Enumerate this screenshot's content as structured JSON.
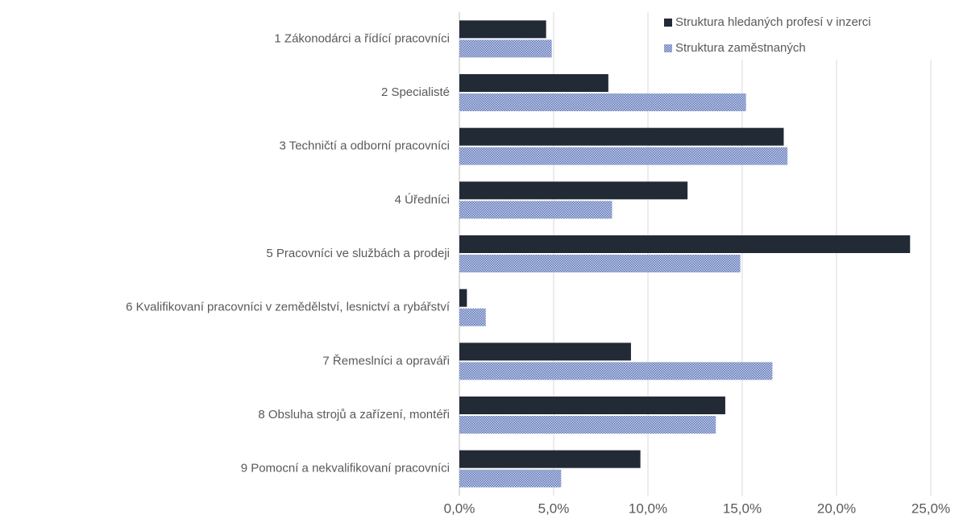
{
  "chart_data": {
    "type": "barh",
    "categories": [
      "1 Zákonodárci a řídící pracovníci",
      "2 Specialisté",
      "3 Techničtí a odborní pracovníci",
      "4 Úředníci",
      "5 Pracovníci ve službách a prodeji",
      "6 Kvalifikovaní pracovníci v zemědělství, lesnictví a rybářství",
      "7 Řemeslníci a opraváři",
      "8 Obsluha strojů a zařízení, montéři",
      "9 Pomocní a nekvalifikovaní pracovníci"
    ],
    "series": [
      {
        "name": "Struktura hledaných profesí v inzerci",
        "color": "#222a35",
        "values": [
          4.6,
          7.9,
          17.2,
          12.1,
          23.9,
          0.4,
          9.1,
          14.1,
          9.6
        ]
      },
      {
        "name": "Struktura zaměstnaných",
        "color": "#8497c8",
        "pattern": "hatched",
        "values": [
          4.9,
          15.2,
          17.4,
          8.1,
          14.9,
          1.4,
          16.6,
          13.6,
          5.4
        ]
      }
    ],
    "xlim": [
      0,
      25
    ],
    "xticks": [
      {
        "value": 0,
        "label": "0,0%"
      },
      {
        "value": 5,
        "label": "5,0%"
      },
      {
        "value": 10,
        "label": "10,0%"
      },
      {
        "value": 15,
        "label": "15,0%"
      },
      {
        "value": 20,
        "label": "20,0%"
      },
      {
        "value": 25,
        "label": "25,0%"
      }
    ],
    "grid": true,
    "legend": "upper right"
  }
}
